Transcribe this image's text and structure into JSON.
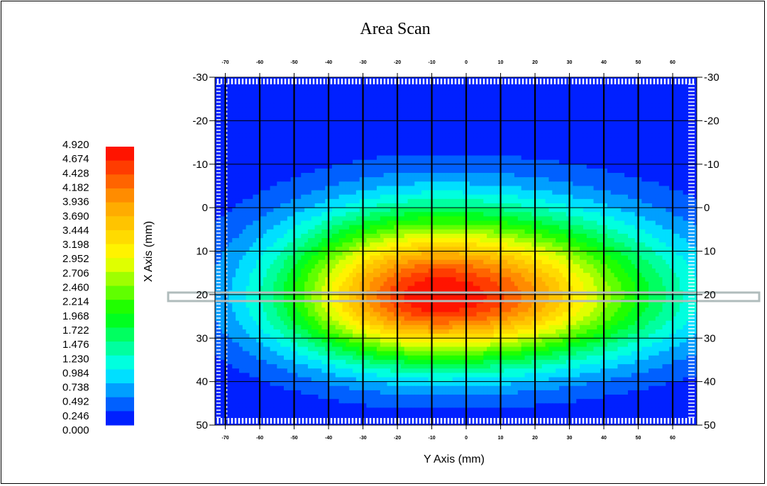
{
  "chart_data": {
    "type": "heatmap",
    "title": "Area Scan",
    "xlabel": "Y Axis (mm)",
    "ylabel": "X Axis (mm)",
    "x_range": [
      -73,
      67
    ],
    "y_range": [
      -30,
      50
    ],
    "x_ticks": [
      -70,
      -60,
      -50,
      -40,
      -30,
      -20,
      -10,
      0,
      10,
      20,
      30,
      40,
      50,
      60
    ],
    "y_ticks": [
      -30,
      -20,
      -10,
      0,
      10,
      20,
      30,
      40,
      50
    ],
    "grid_lines_x": [
      -70,
      -60,
      -50,
      -40,
      -30,
      -20,
      -10,
      0,
      10,
      20,
      30,
      40,
      50,
      60
    ],
    "grid_lines_y": [
      -20,
      -10,
      0,
      10,
      20,
      30,
      40
    ],
    "peak": {
      "x": -8,
      "y": 20.5,
      "value": 4.92
    },
    "spread": {
      "x_left": 44,
      "x_right": 60,
      "y_up": 19,
      "y_down": 15
    },
    "min_value": 0.0,
    "max_value": 4.92,
    "highlight_y": 20.5,
    "color_scale": {
      "labels": [
        "4.920",
        "4.674",
        "4.428",
        "4.182",
        "3.936",
        "3.690",
        "3.444",
        "3.198",
        "2.952",
        "2.706",
        "2.460",
        "2.214",
        "1.968",
        "1.722",
        "1.476",
        "1.230",
        "0.984",
        "0.738",
        "0.492",
        "0.246",
        "0.000"
      ],
      "stops": [
        "#0000ff",
        "#00ffff",
        "#00ff00",
        "#ffff00",
        "#ffa000",
        "#ff0000"
      ]
    },
    "grid": true
  }
}
